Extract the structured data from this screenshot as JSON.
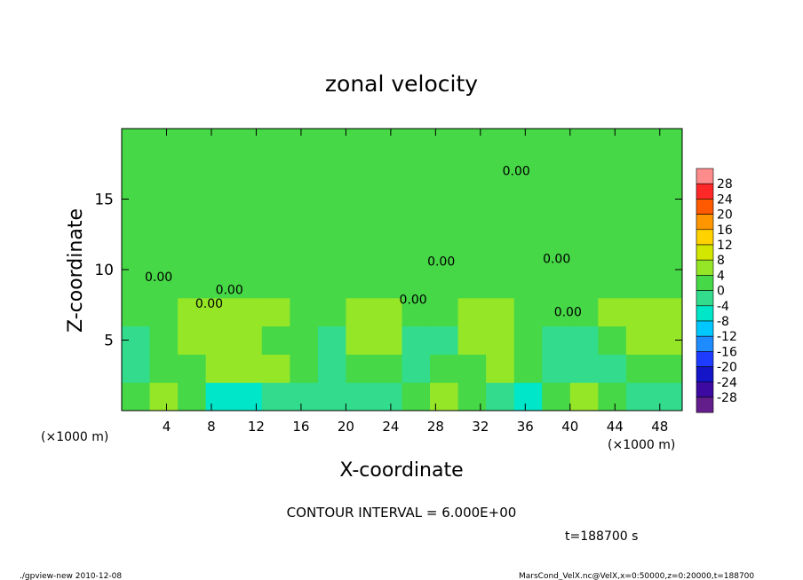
{
  "chart_data": {
    "type": "heatmap",
    "title": "zonal velocity",
    "x_label": "X-coordinate",
    "y_label": "Z-coordinate",
    "x_unit": "(×1000 m)",
    "y_unit": "(×1000 m)",
    "x": [
      1.25,
      3.75,
      6.25,
      8.75,
      11.25,
      13.75,
      16.25,
      18.75,
      21.25,
      23.75,
      26.25,
      28.75,
      31.25,
      33.75,
      36.25,
      38.75,
      41.25,
      43.75,
      46.25,
      48.75
    ],
    "y": [
      1,
      3,
      5,
      7,
      9,
      11,
      13,
      15,
      17,
      19
    ],
    "values": [
      [
        2,
        6,
        0,
        -5,
        -5,
        -3,
        -3,
        -1,
        -2,
        -4,
        0,
        7,
        2,
        -4,
        -6,
        2,
        6,
        0,
        -3,
        -1
      ],
      [
        -1,
        2,
        3,
        5,
        5,
        5,
        2,
        -1,
        1,
        1,
        -2,
        0,
        3,
        4,
        1,
        -1,
        -2,
        -3,
        0,
        1
      ],
      [
        -2,
        1,
        6,
        7,
        5,
        3,
        2,
        -1,
        5,
        5,
        -2,
        -3,
        6,
        7,
        0,
        -2,
        -1,
        1,
        6,
        6
      ],
      [
        3,
        3,
        4,
        4,
        4,
        4,
        3,
        3,
        4,
        4,
        3,
        3,
        4,
        4,
        3,
        3,
        3,
        4,
        4,
        4
      ],
      [
        2,
        2,
        3,
        2,
        3,
        2,
        2,
        2,
        2,
        2,
        3,
        2,
        3,
        2,
        2,
        3,
        2,
        2,
        2,
        2
      ],
      [
        1,
        1,
        2,
        2,
        1,
        1,
        2,
        2,
        1,
        1,
        2,
        2,
        2,
        1,
        2,
        2,
        1,
        1,
        2,
        2
      ],
      [
        1,
        2,
        2,
        1,
        1,
        2,
        2,
        2,
        1,
        1,
        2,
        2,
        1,
        1,
        2,
        2,
        2,
        1,
        1,
        2
      ],
      [
        2,
        2,
        1,
        1,
        2,
        2,
        1,
        1,
        2,
        1,
        1,
        2,
        2,
        1,
        1,
        2,
        2,
        1,
        1,
        1
      ],
      [
        1,
        2,
        2,
        2,
        1,
        1,
        2,
        2,
        2,
        2,
        1,
        1,
        2,
        1,
        1,
        2,
        2,
        2,
        1,
        1
      ],
      [
        2,
        2,
        1,
        1,
        1,
        2,
        2,
        2,
        1,
        1,
        2,
        2,
        1,
        1,
        2,
        2,
        1,
        1,
        2,
        2
      ]
    ],
    "xlim": [
      0,
      50
    ],
    "ylim": [
      0,
      20
    ],
    "xticks": [
      4,
      8,
      12,
      16,
      20,
      24,
      28,
      32,
      36,
      40,
      44,
      48
    ],
    "yticks": [
      5,
      10,
      15
    ],
    "contour_labels": [
      {
        "text": "0.00",
        "x": 3.3,
        "y": 9.5
      },
      {
        "text": "0.00",
        "x": 9.6,
        "y": 8.6
      },
      {
        "text": "0.00",
        "x": 7.8,
        "y": 7.6
      },
      {
        "text": "0.00",
        "x": 26,
        "y": 7.9
      },
      {
        "text": "0.00",
        "x": 28.5,
        "y": 10.6
      },
      {
        "text": "0.00",
        "x": 35.2,
        "y": 17
      },
      {
        "text": "0.00",
        "x": 38.8,
        "y": 10.8
      },
      {
        "text": "0.00",
        "x": 39.8,
        "y": 7
      }
    ],
    "colorbar": {
      "ticks": [
        28,
        24,
        20,
        16,
        12,
        8,
        4,
        0,
        -4,
        -8,
        -12,
        -16,
        -20,
        -24,
        -28
      ],
      "colors": [
        "#ff8c8c",
        "#ff2828",
        "#ff5a00",
        "#ff9600",
        "#ffd200",
        "#d2e600",
        "#96e628",
        "#46d846",
        "#32dc8c",
        "#00e6c8",
        "#00c8ff",
        "#1e8cff",
        "#1e3cff",
        "#1414c8",
        "#3c0aa0",
        "#641e8c"
      ]
    },
    "footnote": "CONTOUR INTERVAL = 6.000E+00",
    "time_label": "t=188700 s",
    "footer_left": "./gpview-new  2010-12-08",
    "footer_right": "MarsCond_VelX.nc@VelX,x=0:50000,z=0:20000,t=188700"
  }
}
